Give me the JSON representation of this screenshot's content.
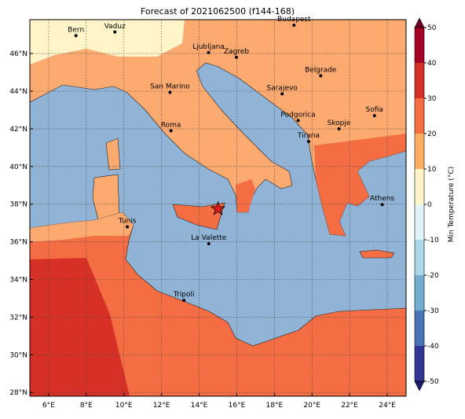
{
  "title": "Forecast of 2021062500 (f144-168)",
  "map": {
    "xlim": [
      5,
      25
    ],
    "ylim": [
      27.8,
      47.8
    ],
    "xticks": [
      {
        "value": 6,
        "label": "6°E"
      },
      {
        "value": 8,
        "label": "8°E"
      },
      {
        "value": 10,
        "label": "10°E"
      },
      {
        "value": 12,
        "label": "12°E"
      },
      {
        "value": 14,
        "label": "14°E"
      },
      {
        "value": 16,
        "label": "16°E"
      },
      {
        "value": 18,
        "label": "18°E"
      },
      {
        "value": 20,
        "label": "20°E"
      },
      {
        "value": 22,
        "label": "22°E"
      },
      {
        "value": 24,
        "label": "24°E"
      }
    ],
    "yticks": [
      {
        "value": 28,
        "label": "28°N"
      },
      {
        "value": 30,
        "label": "30°N"
      },
      {
        "value": 32,
        "label": "32°N"
      },
      {
        "value": 34,
        "label": "34°N"
      },
      {
        "value": 36,
        "label": "36°N"
      },
      {
        "value": 38,
        "label": "38°N"
      },
      {
        "value": 40,
        "label": "40°N"
      },
      {
        "value": 42,
        "label": "42°N"
      },
      {
        "value": 44,
        "label": "44°N"
      },
      {
        "value": 46,
        "label": "46°N"
      }
    ],
    "cities": [
      {
        "name": "Bern",
        "lon": 7.45,
        "lat": 46.95
      },
      {
        "name": "Vaduz",
        "lon": 9.52,
        "lat": 47.14
      },
      {
        "name": "Budapest",
        "lon": 19.04,
        "lat": 47.5
      },
      {
        "name": "Ljubljana",
        "lon": 14.5,
        "lat": 46.05
      },
      {
        "name": "Zagreb",
        "lon": 15.98,
        "lat": 45.8
      },
      {
        "name": "Belgrade",
        "lon": 20.46,
        "lat": 44.82
      },
      {
        "name": "San Marino",
        "lon": 12.45,
        "lat": 43.94
      },
      {
        "name": "Sarajevo",
        "lon": 18.41,
        "lat": 43.86
      },
      {
        "name": "Sofia",
        "lon": 23.32,
        "lat": 42.7
      },
      {
        "name": "Roma",
        "lon": 12.5,
        "lat": 41.9
      },
      {
        "name": "Podgorica",
        "lon": 19.26,
        "lat": 42.44
      },
      {
        "name": "Skopje",
        "lon": 21.43,
        "lat": 42.0
      },
      {
        "name": "Tirana",
        "lon": 19.82,
        "lat": 41.33
      },
      {
        "name": "Athens",
        "lon": 23.73,
        "lat": 37.98
      },
      {
        "name": "Tunis",
        "lon": 10.18,
        "lat": 36.8
      },
      {
        "name": "La Valette",
        "lon": 14.51,
        "lat": 35.9
      },
      {
        "name": "Tripoli",
        "lon": 13.19,
        "lat": 32.89
      }
    ],
    "star": {
      "lon": 15.0,
      "lat": 37.75
    }
  },
  "colorbar": {
    "label": "Min Temperature (°C)",
    "ticks": [
      -50,
      -40,
      -30,
      -20,
      -10,
      0,
      10,
      20,
      30,
      40,
      50
    ],
    "colors": [
      "#313695",
      "#4575b4",
      "#74add1",
      "#abd9e9",
      "#e0f3f8",
      "#fff5c8",
      "#fdae61",
      "#f46d43",
      "#d73027",
      "#a50026"
    ],
    "under": "#1a1a6e",
    "over": "#6e0020"
  }
}
